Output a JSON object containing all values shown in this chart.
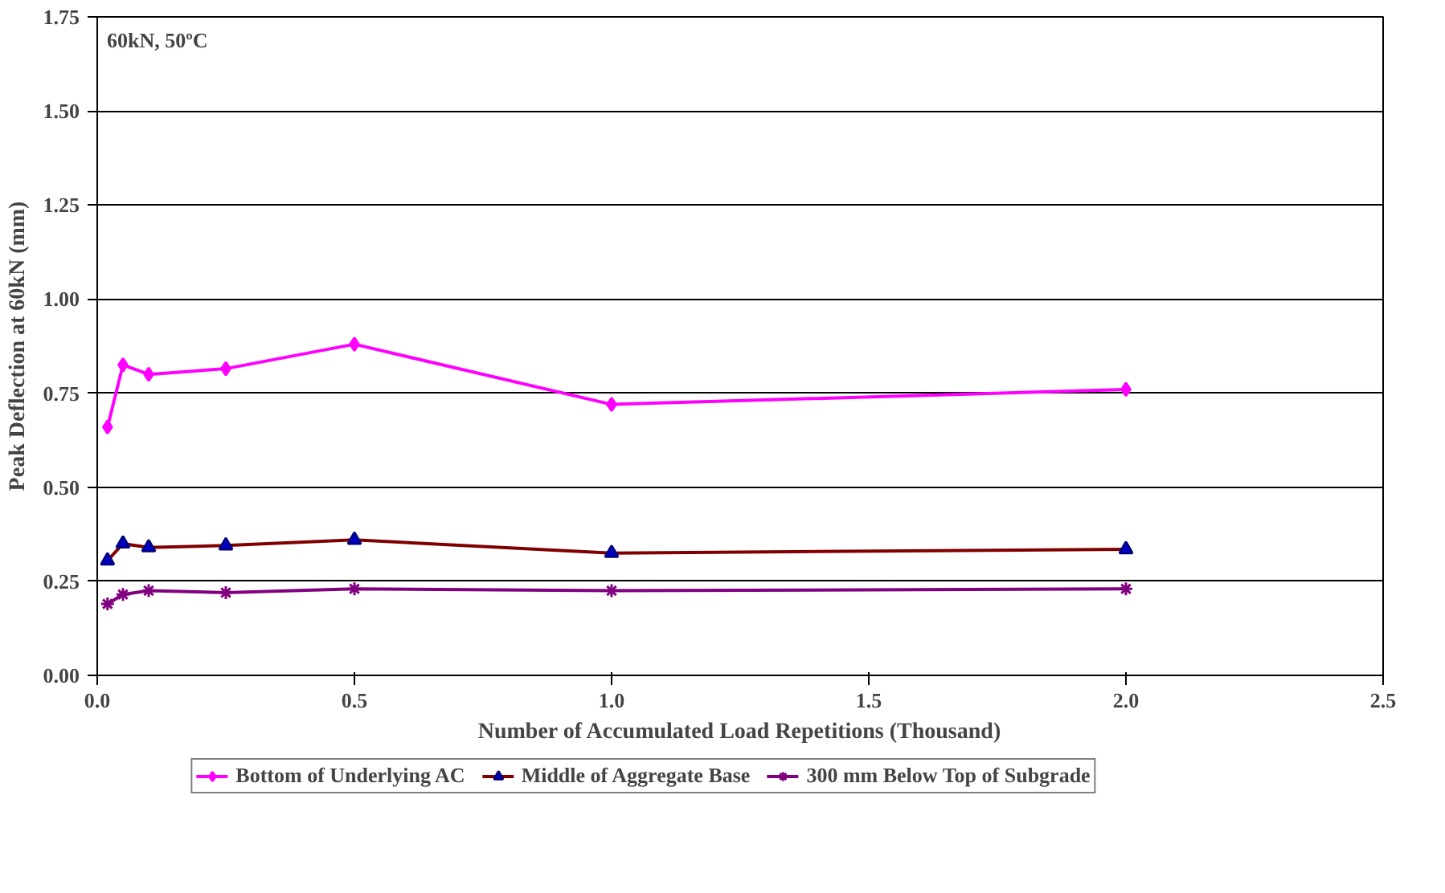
{
  "chart_data": {
    "type": "line",
    "xlabel": "Number of Accumulated Load Repetitions (Thousand)",
    "ylabel": "Peak Deflection at 60kN (mm)",
    "annotations": [
      "60kN, 50ºC"
    ],
    "x": [
      0.02,
      0.05,
      0.1,
      0.25,
      0.5,
      1.0,
      2.0
    ],
    "xlim": [
      0,
      2.5
    ],
    "xticks": [
      {
        "value": 0,
        "label": "0.0"
      },
      0.5,
      {
        "value": 1,
        "label": "1.0"
      },
      1.5,
      {
        "value": 2,
        "label": "2.0"
      },
      2.5
    ],
    "ylim": [
      0,
      1.75
    ],
    "yticks": [
      {
        "value": 0,
        "label": "0.00"
      },
      0.25,
      {
        "value": 0.5,
        "label": "0.50"
      },
      0.75,
      {
        "value": 1,
        "label": "1.00"
      },
      1.25,
      {
        "value": 1.5,
        "label": "1.50"
      },
      1.75
    ],
    "grid": "y",
    "legend": "bottom",
    "line_style": "solid",
    "series": [
      {
        "name": "Bottom of Underlying AC",
        "color": "#ff00ff",
        "marker": "diamond",
        "values": [
          0.66,
          0.825,
          0.8,
          0.815,
          0.88,
          0.72,
          0.76
        ]
      },
      {
        "name": "Middle of Aggregate Base",
        "color": "#800000",
        "marker": "triangle",
        "values": [
          0.305,
          0.35,
          0.34,
          0.345,
          0.36,
          0.325,
          0.335
        ]
      },
      {
        "name": "300 mm Below Top of Subgrade",
        "color": "#800080",
        "marker": "cross",
        "values": [
          0.19,
          0.215,
          0.225,
          0.22,
          0.23,
          0.225,
          0.23
        ]
      }
    ]
  }
}
